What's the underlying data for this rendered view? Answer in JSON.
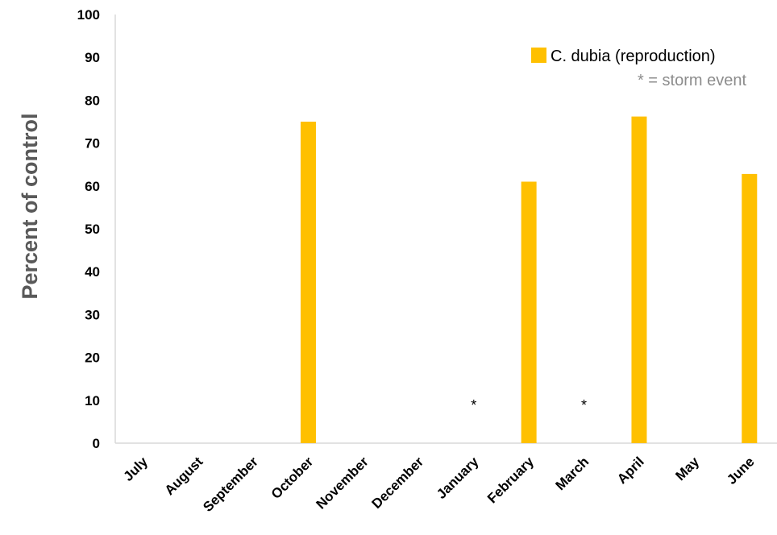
{
  "chart_data": {
    "type": "bar",
    "categories": [
      "July",
      "August",
      "September",
      "October",
      "November",
      "December",
      "January",
      "February",
      "March",
      "April",
      "May",
      "June"
    ],
    "series": [
      {
        "name": "C. dubia (reproduction)",
        "values": [
          null,
          null,
          null,
          75,
          null,
          null,
          null,
          61,
          null,
          76.2,
          null,
          62.8
        ],
        "color": "#ffc000"
      }
    ],
    "ylabel": "Percent of control",
    "xlabel": "",
    "ylim": [
      0,
      100
    ],
    "yticks": [
      0,
      10,
      20,
      30,
      40,
      50,
      60,
      70,
      80,
      90,
      100
    ],
    "grid": false,
    "legend": "top-right",
    "note": "* = storm event",
    "markers": [
      {
        "category": "January",
        "y": 10,
        "text": "*"
      },
      {
        "category": "March",
        "y": 10,
        "text": "*"
      }
    ]
  }
}
